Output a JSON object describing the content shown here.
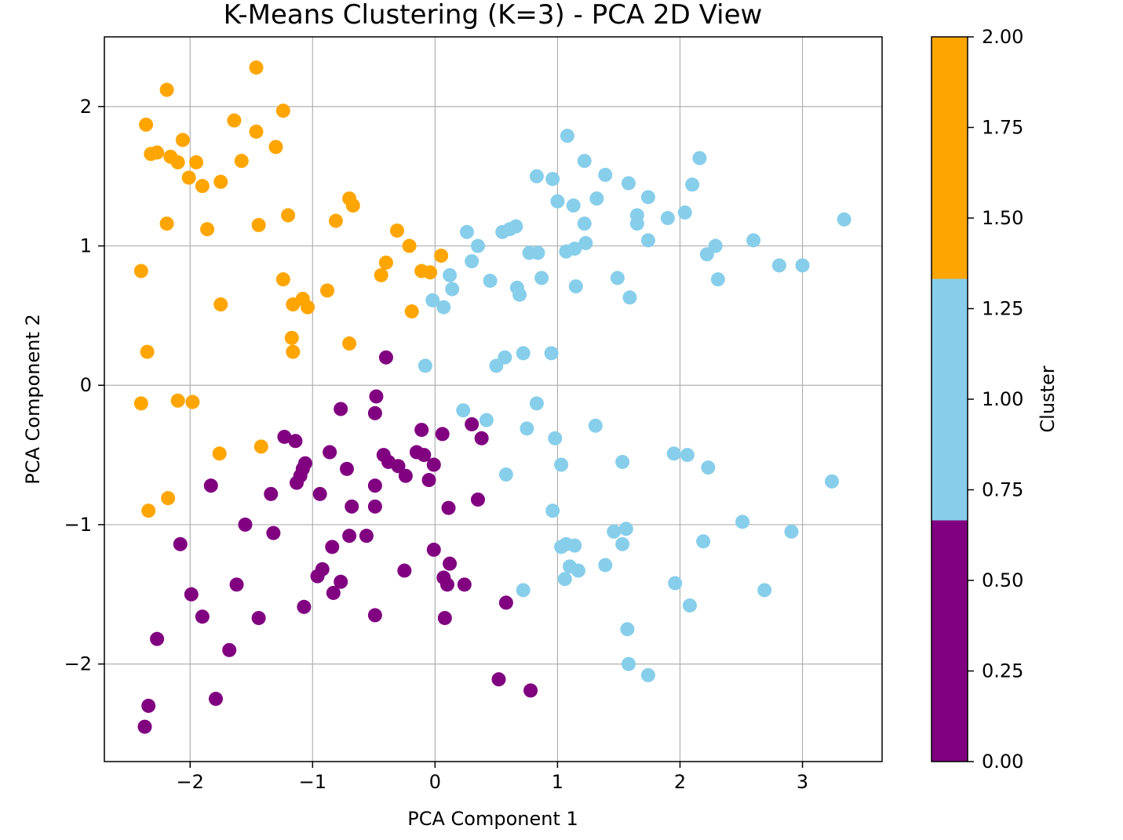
{
  "chart_data": {
    "type": "scatter",
    "title": "K-Means Clustering (K=3) - PCA 2D View",
    "xlabel": "PCA Component 1",
    "ylabel": "PCA Component 2",
    "xlim": [
      -2.7,
      3.65
    ],
    "ylim": [
      -2.7,
      2.5
    ],
    "xticks": [
      -2,
      -1,
      0,
      1,
      2,
      3
    ],
    "yticks": [
      -2,
      -1,
      0,
      1,
      2
    ],
    "grid": true,
    "colorbar": {
      "label": "Cluster",
      "ticks": [
        "0.00",
        "0.25",
        "0.50",
        "0.75",
        "1.00",
        "1.25",
        "1.50",
        "1.75",
        "2.00"
      ],
      "range": [
        0,
        2
      ],
      "colors": [
        "#800080",
        "#87ceeb",
        "#ffa500"
      ]
    },
    "series": [
      {
        "cluster": 0,
        "color": "#800080",
        "points": [
          [
            -0.4,
            0.2
          ],
          [
            -0.48,
            -0.08
          ],
          [
            -0.77,
            -0.17
          ],
          [
            -0.49,
            -0.2
          ],
          [
            -1.23,
            -0.37
          ],
          [
            -1.14,
            -0.4
          ],
          [
            -0.11,
            -0.32
          ],
          [
            0.06,
            -0.35
          ],
          [
            0.3,
            -0.28
          ],
          [
            0.38,
            -0.38
          ],
          [
            -0.86,
            -0.48
          ],
          [
            -1.06,
            -0.56
          ],
          [
            -1.08,
            -0.6
          ],
          [
            -1.1,
            -0.65
          ],
          [
            -1.13,
            -0.7
          ],
          [
            -0.42,
            -0.5
          ],
          [
            -0.38,
            -0.55
          ],
          [
            -0.3,
            -0.58
          ],
          [
            -0.24,
            -0.65
          ],
          [
            -0.15,
            -0.48
          ],
          [
            -0.09,
            -0.5
          ],
          [
            -0.72,
            -0.6
          ],
          [
            -0.01,
            -0.57
          ],
          [
            -0.05,
            -0.68
          ],
          [
            -1.83,
            -0.72
          ],
          [
            -1.34,
            -0.78
          ],
          [
            -0.94,
            -0.78
          ],
          [
            -0.49,
            -0.72
          ],
          [
            0.35,
            -0.82
          ],
          [
            -0.68,
            -0.87
          ],
          [
            -0.49,
            -0.87
          ],
          [
            0.11,
            -0.88
          ],
          [
            -1.55,
            -1.0
          ],
          [
            -1.32,
            -1.06
          ],
          [
            -0.7,
            -1.08
          ],
          [
            -0.56,
            -1.08
          ],
          [
            -2.08,
            -1.14
          ],
          [
            -0.84,
            -1.16
          ],
          [
            -0.01,
            -1.18
          ],
          [
            0.12,
            -1.28
          ],
          [
            -0.25,
            -1.33
          ],
          [
            -0.92,
            -1.32
          ],
          [
            -0.96,
            -1.37
          ],
          [
            -0.77,
            -1.41
          ],
          [
            0.07,
            -1.38
          ],
          [
            0.1,
            -1.43
          ],
          [
            0.24,
            -1.43
          ],
          [
            -1.62,
            -1.43
          ],
          [
            -1.99,
            -1.5
          ],
          [
            -0.83,
            -1.49
          ],
          [
            -1.07,
            -1.59
          ],
          [
            -1.9,
            -1.66
          ],
          [
            -1.44,
            -1.67
          ],
          [
            -0.49,
            -1.65
          ],
          [
            0.08,
            -1.67
          ],
          [
            0.58,
            -1.56
          ],
          [
            -2.27,
            -1.82
          ],
          [
            -1.68,
            -1.9
          ],
          [
            -1.79,
            -2.25
          ],
          [
            0.52,
            -2.11
          ],
          [
            0.78,
            -2.19
          ],
          [
            -2.34,
            -2.3
          ],
          [
            -2.37,
            -2.45
          ]
        ]
      },
      {
        "cluster": 1,
        "color": "#87ceeb",
        "points": [
          [
            1.08,
            1.79
          ],
          [
            2.16,
            1.63
          ],
          [
            1.22,
            1.61
          ],
          [
            1.39,
            1.51
          ],
          [
            0.83,
            1.5
          ],
          [
            0.96,
            1.48
          ],
          [
            1.58,
            1.45
          ],
          [
            2.1,
            1.44
          ],
          [
            1.74,
            1.35
          ],
          [
            1.32,
            1.34
          ],
          [
            1.0,
            1.32
          ],
          [
            1.13,
            1.29
          ],
          [
            1.65,
            1.22
          ],
          [
            2.04,
            1.24
          ],
          [
            1.9,
            1.2
          ],
          [
            3.34,
            1.19
          ],
          [
            1.22,
            1.16
          ],
          [
            1.65,
            1.16
          ],
          [
            0.66,
            1.14
          ],
          [
            0.61,
            1.12
          ],
          [
            0.55,
            1.1
          ],
          [
            0.26,
            1.1
          ],
          [
            1.74,
            1.04
          ],
          [
            2.6,
            1.04
          ],
          [
            1.23,
            1.02
          ],
          [
            2.29,
            1.0
          ],
          [
            1.14,
            0.98
          ],
          [
            1.07,
            0.96
          ],
          [
            2.22,
            0.94
          ],
          [
            0.84,
            0.95
          ],
          [
            0.77,
            0.95
          ],
          [
            0.35,
            1.0
          ],
          [
            0.3,
            0.89
          ],
          [
            2.81,
            0.86
          ],
          [
            3.0,
            0.86
          ],
          [
            0.12,
            0.79
          ],
          [
            0.45,
            0.75
          ],
          [
            0.87,
            0.77
          ],
          [
            1.49,
            0.77
          ],
          [
            2.31,
            0.76
          ],
          [
            1.15,
            0.71
          ],
          [
            0.67,
            0.7
          ],
          [
            0.69,
            0.65
          ],
          [
            1.59,
            0.63
          ],
          [
            0.14,
            0.69
          ],
          [
            -0.02,
            0.61
          ],
          [
            0.07,
            0.56
          ],
          [
            0.72,
            0.23
          ],
          [
            0.95,
            0.23
          ],
          [
            0.57,
            0.2
          ],
          [
            0.5,
            0.14
          ],
          [
            -0.08,
            0.14
          ],
          [
            0.83,
            -0.13
          ],
          [
            0.23,
            -0.18
          ],
          [
            0.42,
            -0.25
          ],
          [
            1.31,
            -0.29
          ],
          [
            0.75,
            -0.31
          ],
          [
            0.98,
            -0.38
          ],
          [
            1.95,
            -0.49
          ],
          [
            2.06,
            -0.5
          ],
          [
            1.53,
            -0.55
          ],
          [
            1.03,
            -0.57
          ],
          [
            2.23,
            -0.59
          ],
          [
            3.24,
            -0.69
          ],
          [
            0.58,
            -0.64
          ],
          [
            0.96,
            -0.9
          ],
          [
            2.51,
            -0.98
          ],
          [
            1.46,
            -1.05
          ],
          [
            1.56,
            -1.03
          ],
          [
            2.91,
            -1.05
          ],
          [
            2.19,
            -1.12
          ],
          [
            1.07,
            -1.14
          ],
          [
            1.03,
            -1.16
          ],
          [
            1.14,
            -1.15
          ],
          [
            1.53,
            -1.14
          ],
          [
            1.1,
            -1.3
          ],
          [
            1.17,
            -1.33
          ],
          [
            1.39,
            -1.29
          ],
          [
            1.06,
            -1.39
          ],
          [
            1.96,
            -1.42
          ],
          [
            0.72,
            -1.47
          ],
          [
            2.69,
            -1.47
          ],
          [
            2.08,
            -1.58
          ],
          [
            1.57,
            -1.75
          ],
          [
            1.58,
            -2.0
          ],
          [
            1.74,
            -2.08
          ]
        ]
      },
      {
        "cluster": 2,
        "color": "#ffa500",
        "points": [
          [
            -1.46,
            2.28
          ],
          [
            -2.19,
            2.12
          ],
          [
            -1.24,
            1.97
          ],
          [
            -2.36,
            1.87
          ],
          [
            -1.64,
            1.9
          ],
          [
            -1.46,
            1.82
          ],
          [
            -2.06,
            1.76
          ],
          [
            -1.3,
            1.71
          ],
          [
            -2.27,
            1.67
          ],
          [
            -2.32,
            1.66
          ],
          [
            -2.16,
            1.64
          ],
          [
            -2.1,
            1.6
          ],
          [
            -1.95,
            1.6
          ],
          [
            -1.58,
            1.61
          ],
          [
            -2.01,
            1.49
          ],
          [
            -1.75,
            1.46
          ],
          [
            -1.9,
            1.43
          ],
          [
            -0.7,
            1.34
          ],
          [
            -0.67,
            1.29
          ],
          [
            -1.2,
            1.22
          ],
          [
            -2.19,
            1.16
          ],
          [
            -1.44,
            1.15
          ],
          [
            -1.86,
            1.12
          ],
          [
            -0.81,
            1.18
          ],
          [
            -0.31,
            1.11
          ],
          [
            -0.21,
            1.0
          ],
          [
            -2.4,
            0.82
          ],
          [
            -0.4,
            0.88
          ],
          [
            -0.44,
            0.79
          ],
          [
            -1.24,
            0.76
          ],
          [
            -0.11,
            0.82
          ],
          [
            -0.04,
            0.81
          ],
          [
            0.05,
            0.93
          ],
          [
            -0.88,
            0.68
          ],
          [
            -1.08,
            0.62
          ],
          [
            -1.16,
            0.58
          ],
          [
            -1.04,
            0.56
          ],
          [
            -1.75,
            0.58
          ],
          [
            -0.19,
            0.53
          ],
          [
            -1.17,
            0.34
          ],
          [
            -0.7,
            0.3
          ],
          [
            -2.35,
            0.24
          ],
          [
            -1.16,
            0.24
          ],
          [
            -2.1,
            -0.11
          ],
          [
            -1.98,
            -0.12
          ],
          [
            -2.4,
            -0.13
          ],
          [
            -1.42,
            -0.44
          ],
          [
            -1.76,
            -0.49
          ],
          [
            -2.18,
            -0.81
          ],
          [
            -2.34,
            -0.9
          ]
        ]
      }
    ]
  }
}
